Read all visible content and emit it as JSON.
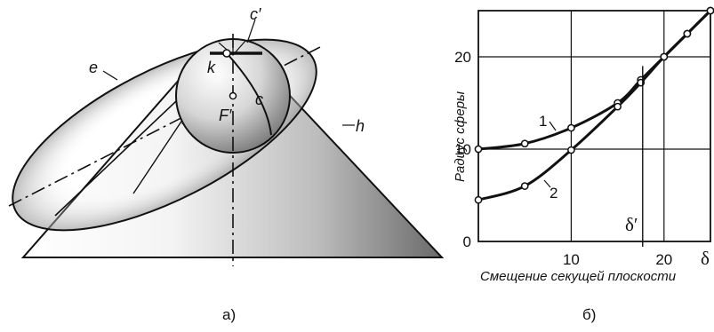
{
  "left_diagram": {
    "labels": {
      "c_prime": "c′",
      "e": "e",
      "k": "k",
      "c": "c",
      "f_prime": "F′",
      "h": "h"
    },
    "caption": "а)"
  },
  "chart_data": {
    "type": "line",
    "xlabel": "Смещение секущей плоскости",
    "ylabel": "Радиус сферы",
    "x_ticks": [
      "10",
      "20"
    ],
    "y_ticks": [
      "0",
      "10",
      "20"
    ],
    "x_symbol": "δ",
    "xlim": [
      0,
      25
    ],
    "ylim": [
      0,
      25
    ],
    "grid": true,
    "marker": {
      "label": "δ′",
      "x": 17.7
    },
    "series": [
      {
        "name": "1",
        "x": [
          0,
          5,
          10,
          15,
          17.5,
          20,
          22.5,
          25
        ],
        "y": [
          10,
          10.6,
          12.3,
          15,
          17.5,
          20,
          22.5,
          25
        ]
      },
      {
        "name": "2",
        "x": [
          0,
          5,
          10,
          15,
          17.5,
          20,
          22.5,
          25
        ],
        "y": [
          4.5,
          6,
          9.9,
          14.6,
          17.2,
          20,
          22.5,
          25
        ]
      }
    ],
    "caption": "б)"
  }
}
